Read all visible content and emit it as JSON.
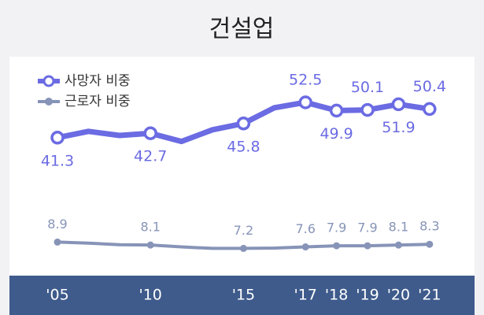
{
  "chart_data": {
    "type": "line",
    "title": "건설업",
    "categories": [
      "'05",
      null,
      null,
      "'10",
      null,
      null,
      "'15",
      null,
      "'17",
      "'18",
      "'19",
      "'20",
      "'21"
    ],
    "series": [
      {
        "name": "사망자 비중",
        "color": "#6b6be3",
        "values": [
          41.3,
          43.3,
          42.0,
          42.7,
          40.1,
          43.8,
          45.8,
          50.8,
          52.5,
          49.9,
          50.1,
          51.9,
          50.4
        ]
      },
      {
        "name": "근로자 비중",
        "color": "#8794b8",
        "axis": "y2",
        "values": [
          8.9,
          8.6,
          8.2,
          8.1,
          7.6,
          7.2,
          7.2,
          7.3,
          7.6,
          7.9,
          7.9,
          8.1,
          8.3
        ]
      }
    ],
    "ylim": [
      0,
      65
    ],
    "y2lim": [
      2,
      57
    ],
    "legend": "upper left"
  }
}
